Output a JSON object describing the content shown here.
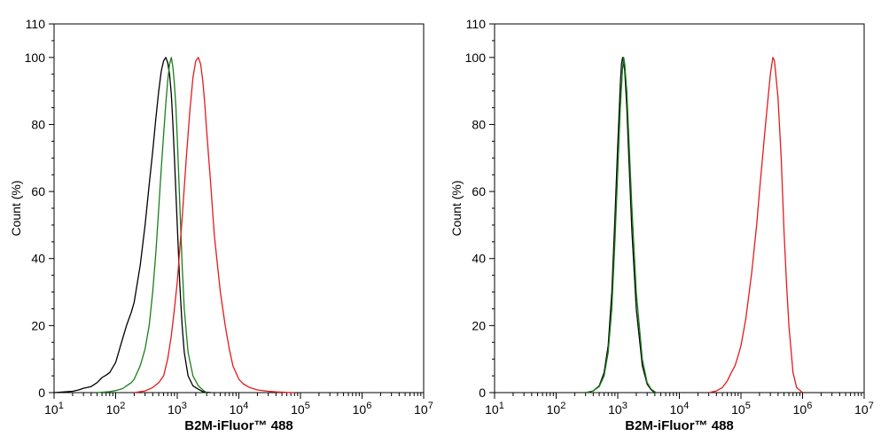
{
  "chart_data": [
    {
      "type": "line",
      "title": "",
      "xlabel": "B2M-iFluor™ 488",
      "ylabel": "Count  (%)",
      "xscale": "log",
      "xlim": [
        10,
        10000000
      ],
      "ylim": [
        0,
        110
      ],
      "x_ticks": [
        {
          "base": "10",
          "exp": "1"
        },
        {
          "base": "10",
          "exp": "2"
        },
        {
          "base": "10",
          "exp": "3"
        },
        {
          "base": "10",
          "exp": "4"
        },
        {
          "base": "10",
          "exp": "5"
        },
        {
          "base": "10",
          "exp": "6"
        },
        {
          "base": "10",
          "exp": "7"
        }
      ],
      "y_ticks": [
        "0",
        "20",
        "40",
        "60",
        "80",
        "100",
        "110"
      ],
      "grid": false,
      "legend": "none",
      "series": [
        {
          "color": "#000000",
          "x": [
            10,
            15,
            20,
            25,
            30,
            40,
            50,
            60,
            70,
            80,
            100,
            120,
            150,
            180,
            200,
            250,
            300,
            350,
            400,
            450,
            500,
            550,
            600,
            650,
            700,
            750,
            800,
            850,
            900,
            1000,
            1100,
            1200,
            1300,
            1500,
            1800,
            2200,
            2600,
            3000,
            3500
          ],
          "y": [
            0,
            0.2,
            0.4,
            0.8,
            1.3,
            1.8,
            3.0,
            4.5,
            5.2,
            6.0,
            9.0,
            14.0,
            20.0,
            24.0,
            27.0,
            38.0,
            50.0,
            62.0,
            72.0,
            82.0,
            90.0,
            96.0,
            99.0,
            100.0,
            98.5,
            95.0,
            89.0,
            80.0,
            70.0,
            50.0,
            32.0,
            20.0,
            12.0,
            5.0,
            2.0,
            1.0,
            0.3,
            0.1,
            0
          ]
        },
        {
          "color": "#1a7f1a",
          "x": [
            50,
            80,
            100,
            130,
            150,
            180,
            200,
            250,
            300,
            350,
            400,
            450,
            500,
            550,
            600,
            650,
            700,
            750,
            800,
            850,
            900,
            950,
            1000,
            1100,
            1200,
            1300,
            1500,
            1800,
            2200,
            2600,
            3000
          ],
          "y": [
            0,
            0.3,
            0.6,
            1.2,
            2.0,
            3.0,
            4.0,
            8.0,
            13.0,
            20.0,
            30.0,
            42.0,
            55.0,
            67.0,
            77.0,
            86.0,
            93.0,
            98.0,
            100.0,
            97.0,
            92.0,
            85.0,
            76.0,
            56.0,
            38.0,
            25.0,
            12.0,
            5.0,
            2.0,
            0.8,
            0
          ]
        },
        {
          "color": "#e41a1c",
          "x": [
            200,
            300,
            400,
            500,
            600,
            700,
            800,
            900,
            1000,
            1200,
            1400,
            1600,
            1800,
            2000,
            2200,
            2400,
            2600,
            2800,
            3000,
            3500,
            4000,
            5000,
            6000,
            7000,
            8000,
            10000,
            12000,
            15000,
            20000,
            30000,
            40000,
            60000,
            80000
          ],
          "y": [
            0,
            0.5,
            1.5,
            3.0,
            5.0,
            10.0,
            17.0,
            25.0,
            33.0,
            52.0,
            70.0,
            84.0,
            94.0,
            99.0,
            100.0,
            98.0,
            93.0,
            86.0,
            78.0,
            62.0,
            47.0,
            30.0,
            20.0,
            13.0,
            8.0,
            4.0,
            2.5,
            1.5,
            0.8,
            0.4,
            0.2,
            0.05,
            0
          ]
        }
      ]
    },
    {
      "type": "line",
      "title": "",
      "xlabel": "B2M-iFluor™ 488",
      "ylabel": "Count  (%)",
      "xscale": "log",
      "xlim": [
        10,
        10000000
      ],
      "ylim": [
        0,
        110
      ],
      "x_ticks": [
        {
          "base": "10",
          "exp": "1"
        },
        {
          "base": "10",
          "exp": "2"
        },
        {
          "base": "10",
          "exp": "3"
        },
        {
          "base": "10",
          "exp": "4"
        },
        {
          "base": "10",
          "exp": "5"
        },
        {
          "base": "10",
          "exp": "6"
        },
        {
          "base": "10",
          "exp": "7"
        }
      ],
      "y_ticks": [
        "0",
        "20",
        "40",
        "60",
        "80",
        "100",
        "110"
      ],
      "grid": false,
      "legend": "none",
      "series": [
        {
          "color": "#000000",
          "x": [
            300,
            400,
            500,
            600,
            700,
            800,
            900,
            1000,
            1100,
            1150,
            1200,
            1300,
            1400,
            1500,
            1700,
            2000,
            2500,
            3000,
            3500,
            4000
          ],
          "y": [
            0,
            0.5,
            2.0,
            6.0,
            14.0,
            30.0,
            52.0,
            74.0,
            92.0,
            98.0,
            100.0,
            96.0,
            85.0,
            72.0,
            48.0,
            25.0,
            8.0,
            2.5,
            0.8,
            0
          ]
        },
        {
          "color": "#1a7f1a",
          "x": [
            300,
            400,
            500,
            600,
            700,
            800,
            900,
            1000,
            1100,
            1200,
            1250,
            1300,
            1400,
            1500,
            1700,
            2000,
            2500,
            3000,
            3500,
            4200
          ],
          "y": [
            0,
            0.5,
            1.8,
            5.0,
            12.0,
            25.0,
            45.0,
            66.0,
            85.0,
            97.0,
            100.0,
            98.0,
            90.0,
            78.0,
            55.0,
            30.0,
            10.0,
            3.0,
            1.0,
            0
          ]
        },
        {
          "color": "#e41a1c",
          "x": [
            30000,
            40000,
            50000,
            60000,
            70000,
            80000,
            90000,
            100000,
            120000,
            150000,
            180000,
            200000,
            250000,
            300000,
            330000,
            350000,
            400000,
            450000,
            500000,
            550000,
            600000,
            700000,
            800000,
            1000000
          ],
          "y": [
            0,
            0.5,
            1.5,
            3.5,
            6.0,
            8.0,
            11.0,
            14.0,
            22.0,
            36.0,
            50.0,
            60.0,
            80.0,
            95.0,
            100.0,
            99.0,
            88.0,
            70.0,
            48.0,
            32.0,
            20.0,
            6.0,
            1.5,
            0
          ]
        }
      ]
    }
  ]
}
